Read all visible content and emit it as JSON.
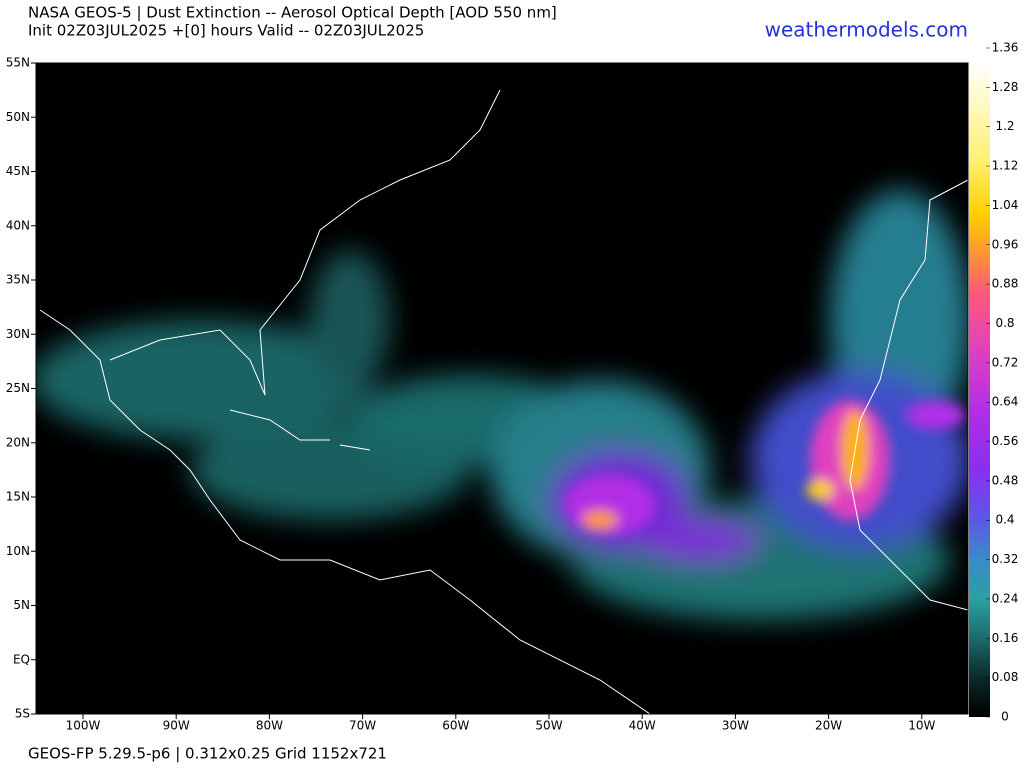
{
  "header": {
    "title": "NASA GEOS-5 | Dust Extinction -- Aerosol Optical Depth [AOD 550 nm]",
    "subtitle": "Init 02Z03JUL2025 +[0] hours Valid -- 02Z03JUL2025",
    "site": "weathermodels.com"
  },
  "map": {
    "lat_labels": [
      "55N",
      "50N",
      "45N",
      "40N",
      "35N",
      "30N",
      "25N",
      "20N",
      "15N",
      "10N",
      "5N",
      "EQ",
      "5S"
    ],
    "lon_labels": [
      "100W",
      "90W",
      "80W",
      "70W",
      "60W",
      "50W",
      "40W",
      "30W",
      "20W",
      "10W"
    ]
  },
  "colorbar": {
    "ticks": [
      0,
      0.08,
      0.16,
      0.24,
      0.32,
      0.4,
      0.48,
      0.56,
      0.64,
      0.72,
      0.8,
      0.88,
      0.96,
      1.04,
      1.12,
      1.2,
      1.28,
      1.36
    ]
  },
  "footer": "GEOS-FP 5.29.5-p6 | 0.312x0.25 Grid 1152x721"
}
